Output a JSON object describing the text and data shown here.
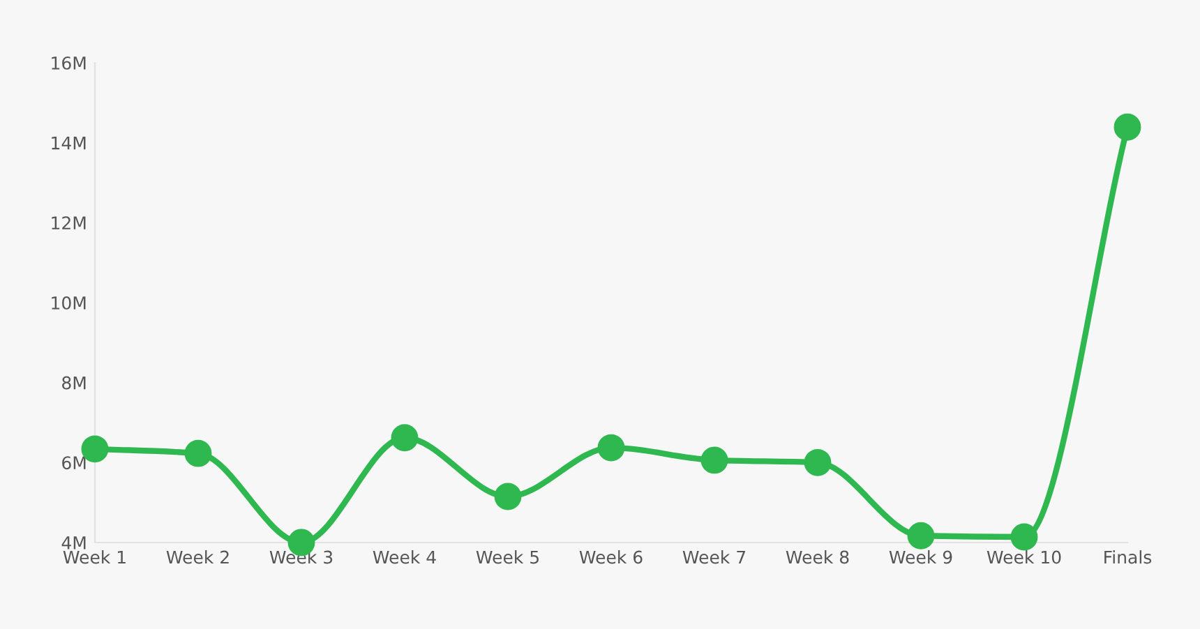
{
  "chart_data": {
    "type": "line",
    "categories": [
      "Week 1",
      "Week 2",
      "Week 3",
      "Week 4",
      "Week 5",
      "Week 6",
      "Week 7",
      "Week 8",
      "Week 9",
      "Week 10",
      "Finals"
    ],
    "series": [
      {
        "color": "#2fb84f",
        "values": [
          6.34,
          6.23,
          4.0,
          6.62,
          5.15,
          6.37,
          6.06,
          6.0,
          4.17,
          4.14,
          14.39
        ]
      }
    ],
    "ylim": [
      4,
      16
    ],
    "yticks": [
      {
        "value": 4,
        "label": "4M"
      },
      {
        "value": 6,
        "label": "6M"
      },
      {
        "value": 8,
        "label": "8M"
      },
      {
        "value": 10,
        "label": "10M"
      },
      {
        "value": 12,
        "label": "12M"
      },
      {
        "value": 14,
        "label": "14M"
      },
      {
        "value": 16,
        "label": "16M"
      }
    ],
    "grid": false,
    "marker": "circle",
    "line_style": "solid",
    "legend": false
  }
}
